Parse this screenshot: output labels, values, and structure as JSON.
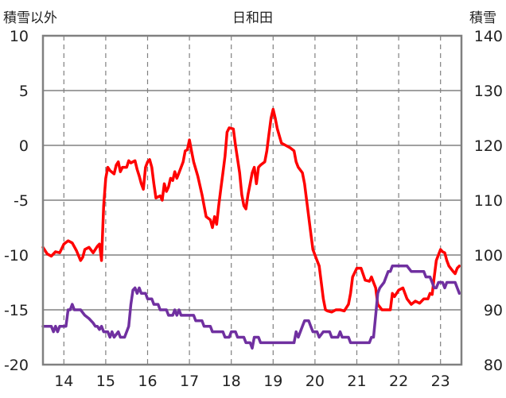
{
  "chart_data": {
    "type": "line",
    "title": "日和田",
    "ylabel_left": "積雪以外",
    "ylabel_right": "積雪",
    "x_tick_labels": [
      "14",
      "15",
      "16",
      "17",
      "18",
      "19",
      "20",
      "21",
      "22",
      "23"
    ],
    "xlim": [
      13.5,
      23.5
    ],
    "ylim_left": [
      -20,
      10
    ],
    "ylim_right": [
      80,
      140
    ],
    "y_ticks_left": [
      10,
      5,
      0,
      -5,
      -10,
      -15,
      -20
    ],
    "y_ticks_right": [
      140,
      130,
      120,
      110,
      100,
      90,
      80
    ],
    "grid": true,
    "series": [
      {
        "axis": "left",
        "color": "#ff0000",
        "points": [
          [
            13.5,
            -9.3
          ],
          [
            13.6,
            -9.9
          ],
          [
            13.7,
            -10.1
          ],
          [
            13.8,
            -9.7
          ],
          [
            13.9,
            -9.8
          ],
          [
            14.0,
            -9.0
          ],
          [
            14.1,
            -8.7
          ],
          [
            14.2,
            -8.9
          ],
          [
            14.3,
            -9.6
          ],
          [
            14.4,
            -10.5
          ],
          [
            14.45,
            -10.2
          ],
          [
            14.5,
            -9.5
          ],
          [
            14.6,
            -9.3
          ],
          [
            14.7,
            -9.8
          ],
          [
            14.8,
            -9.2
          ],
          [
            14.85,
            -9.0
          ],
          [
            14.9,
            -10.5
          ],
          [
            14.95,
            -5.5
          ],
          [
            15.0,
            -3.0
          ],
          [
            15.05,
            -2.0
          ],
          [
            15.1,
            -2.3
          ],
          [
            15.2,
            -2.6
          ],
          [
            15.25,
            -1.8
          ],
          [
            15.3,
            -1.5
          ],
          [
            15.35,
            -2.4
          ],
          [
            15.4,
            -2.0
          ],
          [
            15.5,
            -2.0
          ],
          [
            15.55,
            -1.4
          ],
          [
            15.6,
            -1.6
          ],
          [
            15.7,
            -1.4
          ],
          [
            15.75,
            -2.2
          ],
          [
            15.8,
            -2.8
          ],
          [
            15.85,
            -3.5
          ],
          [
            15.9,
            -4.0
          ],
          [
            15.95,
            -2.0
          ],
          [
            16.0,
            -1.5
          ],
          [
            16.05,
            -1.3
          ],
          [
            16.1,
            -2.0
          ],
          [
            16.15,
            -3.5
          ],
          [
            16.2,
            -4.8
          ],
          [
            16.3,
            -4.6
          ],
          [
            16.35,
            -5.0
          ],
          [
            16.4,
            -3.5
          ],
          [
            16.45,
            -4.2
          ],
          [
            16.5,
            -3.8
          ],
          [
            16.55,
            -3.0
          ],
          [
            16.6,
            -3.2
          ],
          [
            16.65,
            -2.4
          ],
          [
            16.7,
            -3.0
          ],
          [
            16.75,
            -2.5
          ],
          [
            16.8,
            -2.0
          ],
          [
            16.85,
            -1.5
          ],
          [
            16.9,
            -0.5
          ],
          [
            16.95,
            -0.4
          ],
          [
            17.0,
            0.5
          ],
          [
            17.05,
            -0.5
          ],
          [
            17.1,
            -1.5
          ],
          [
            17.2,
            -2.8
          ],
          [
            17.3,
            -4.5
          ],
          [
            17.35,
            -5.5
          ],
          [
            17.4,
            -6.5
          ],
          [
            17.5,
            -6.8
          ],
          [
            17.55,
            -7.5
          ],
          [
            17.6,
            -6.5
          ],
          [
            17.65,
            -7.2
          ],
          [
            17.7,
            -5.5
          ],
          [
            17.75,
            -4.0
          ],
          [
            17.8,
            -2.5
          ],
          [
            17.85,
            -1.0
          ],
          [
            17.9,
            1.2
          ],
          [
            17.95,
            1.6
          ],
          [
            18.05,
            1.5
          ],
          [
            18.1,
            0.0
          ],
          [
            18.2,
            -2.5
          ],
          [
            18.25,
            -4.5
          ],
          [
            18.3,
            -5.5
          ],
          [
            18.35,
            -5.8
          ],
          [
            18.4,
            -4.5
          ],
          [
            18.45,
            -3.5
          ],
          [
            18.5,
            -2.5
          ],
          [
            18.55,
            -2.0
          ],
          [
            18.6,
            -3.5
          ],
          [
            18.65,
            -2.0
          ],
          [
            18.7,
            -1.8
          ],
          [
            18.8,
            -1.5
          ],
          [
            18.85,
            -0.5
          ],
          [
            18.9,
            1.0
          ],
          [
            18.95,
            2.5
          ],
          [
            19.0,
            3.3
          ],
          [
            19.05,
            2.5
          ],
          [
            19.1,
            1.5
          ],
          [
            19.2,
            0.2
          ],
          [
            19.3,
            0.0
          ],
          [
            19.4,
            -0.2
          ],
          [
            19.5,
            -0.5
          ],
          [
            19.55,
            -1.5
          ],
          [
            19.6,
            -2.0
          ],
          [
            19.7,
            -2.5
          ],
          [
            19.75,
            -3.5
          ],
          [
            19.8,
            -5.0
          ],
          [
            19.85,
            -6.5
          ],
          [
            19.9,
            -8.0
          ],
          [
            19.95,
            -9.5
          ],
          [
            20.0,
            -10.0
          ],
          [
            20.05,
            -10.5
          ],
          [
            20.1,
            -11.0
          ],
          [
            20.15,
            -12.5
          ],
          [
            20.2,
            -14.0
          ],
          [
            20.25,
            -15.0
          ],
          [
            20.3,
            -15.1
          ],
          [
            20.4,
            -15.2
          ],
          [
            20.5,
            -15.0
          ],
          [
            20.6,
            -15.0
          ],
          [
            20.7,
            -15.1
          ],
          [
            20.8,
            -14.5
          ],
          [
            20.85,
            -13.5
          ],
          [
            20.9,
            -12.0
          ],
          [
            21.0,
            -11.2
          ],
          [
            21.1,
            -11.2
          ],
          [
            21.2,
            -12.3
          ],
          [
            21.3,
            -12.4
          ],
          [
            21.35,
            -12.0
          ],
          [
            21.4,
            -12.5
          ],
          [
            21.45,
            -13.0
          ],
          [
            21.5,
            -14.5
          ],
          [
            21.6,
            -15.0
          ],
          [
            21.8,
            -15.0
          ],
          [
            21.85,
            -13.5
          ],
          [
            21.9,
            -13.8
          ],
          [
            22.0,
            -13.2
          ],
          [
            22.1,
            -13.0
          ],
          [
            22.2,
            -14.0
          ],
          [
            22.3,
            -14.5
          ],
          [
            22.4,
            -14.2
          ],
          [
            22.5,
            -14.4
          ],
          [
            22.6,
            -14.0
          ],
          [
            22.7,
            -14.0
          ],
          [
            22.75,
            -13.5
          ],
          [
            22.8,
            -13.6
          ],
          [
            22.85,
            -12.0
          ],
          [
            22.9,
            -10.5
          ],
          [
            23.0,
            -9.5
          ],
          [
            23.05,
            -9.7
          ],
          [
            23.1,
            -9.8
          ],
          [
            23.15,
            -10.5
          ],
          [
            23.2,
            -11.0
          ],
          [
            23.3,
            -11.5
          ],
          [
            23.35,
            -11.7
          ],
          [
            23.4,
            -11.2
          ],
          [
            23.45,
            -11.0
          ]
        ]
      },
      {
        "axis": "left",
        "color": "#7030a0",
        "points": [
          [
            13.5,
            -16.5
          ],
          [
            13.7,
            -16.5
          ],
          [
            13.75,
            -17.0
          ],
          [
            13.8,
            -16.5
          ],
          [
            13.85,
            -17.0
          ],
          [
            13.9,
            -16.5
          ],
          [
            14.05,
            -16.5
          ],
          [
            14.1,
            -15.0
          ],
          [
            14.15,
            -15.0
          ],
          [
            14.2,
            -14.5
          ],
          [
            14.25,
            -15.0
          ],
          [
            14.4,
            -15.0
          ],
          [
            14.5,
            -15.5
          ],
          [
            14.6,
            -15.8
          ],
          [
            14.65,
            -16.0
          ],
          [
            14.7,
            -16.2
          ],
          [
            14.75,
            -16.5
          ],
          [
            14.8,
            -16.5
          ],
          [
            14.85,
            -16.8
          ],
          [
            14.9,
            -16.5
          ],
          [
            14.95,
            -17.0
          ],
          [
            15.05,
            -17.0
          ],
          [
            15.1,
            -17.5
          ],
          [
            15.15,
            -17.0
          ],
          [
            15.2,
            -17.5
          ],
          [
            15.3,
            -17.0
          ],
          [
            15.35,
            -17.5
          ],
          [
            15.45,
            -17.5
          ],
          [
            15.5,
            -17.0
          ],
          [
            15.55,
            -16.5
          ],
          [
            15.6,
            -14.5
          ],
          [
            15.65,
            -13.2
          ],
          [
            15.7,
            -13.0
          ],
          [
            15.75,
            -13.5
          ],
          [
            15.8,
            -13.0
          ],
          [
            15.85,
            -13.5
          ],
          [
            15.95,
            -13.5
          ],
          [
            16.0,
            -14.0
          ],
          [
            16.1,
            -14.0
          ],
          [
            16.15,
            -14.5
          ],
          [
            16.25,
            -14.5
          ],
          [
            16.3,
            -15.0
          ],
          [
            16.45,
            -15.0
          ],
          [
            16.5,
            -15.5
          ],
          [
            16.6,
            -15.5
          ],
          [
            16.65,
            -15.0
          ],
          [
            16.7,
            -15.5
          ],
          [
            16.75,
            -15.0
          ],
          [
            16.8,
            -15.5
          ],
          [
            17.1,
            -15.5
          ],
          [
            17.15,
            -16.0
          ],
          [
            17.3,
            -16.0
          ],
          [
            17.35,
            -16.5
          ],
          [
            17.5,
            -16.5
          ],
          [
            17.55,
            -17.0
          ],
          [
            17.8,
            -17.0
          ],
          [
            17.85,
            -17.5
          ],
          [
            17.95,
            -17.5
          ],
          [
            18.0,
            -17.0
          ],
          [
            18.1,
            -17.0
          ],
          [
            18.15,
            -17.5
          ],
          [
            18.3,
            -17.5
          ],
          [
            18.35,
            -18.0
          ],
          [
            18.45,
            -18.0
          ],
          [
            18.5,
            -18.5
          ],
          [
            18.55,
            -17.5
          ],
          [
            18.65,
            -17.5
          ],
          [
            18.7,
            -18.0
          ],
          [
            19.5,
            -18.0
          ],
          [
            19.55,
            -17.0
          ],
          [
            19.6,
            -17.5
          ],
          [
            19.65,
            -17.0
          ],
          [
            19.7,
            -16.5
          ],
          [
            19.75,
            -16.0
          ],
          [
            19.85,
            -16.0
          ],
          [
            19.9,
            -16.5
          ],
          [
            19.95,
            -17.0
          ],
          [
            20.05,
            -17.0
          ],
          [
            20.1,
            -17.5
          ],
          [
            20.2,
            -17.0
          ],
          [
            20.35,
            -17.0
          ],
          [
            20.4,
            -17.5
          ],
          [
            20.55,
            -17.5
          ],
          [
            20.6,
            -17.0
          ],
          [
            20.65,
            -17.5
          ],
          [
            20.8,
            -17.5
          ],
          [
            20.85,
            -18.0
          ],
          [
            21.3,
            -18.0
          ],
          [
            21.35,
            -17.5
          ],
          [
            21.4,
            -17.5
          ],
          [
            21.45,
            -15.5
          ],
          [
            21.5,
            -13.5
          ],
          [
            21.55,
            -13.0
          ],
          [
            21.65,
            -12.5
          ],
          [
            21.7,
            -12.0
          ],
          [
            21.75,
            -11.5
          ],
          [
            21.8,
            -11.5
          ],
          [
            21.85,
            -11.0
          ],
          [
            22.2,
            -11.0
          ],
          [
            22.3,
            -11.5
          ],
          [
            22.6,
            -11.5
          ],
          [
            22.65,
            -12.0
          ],
          [
            22.75,
            -12.0
          ],
          [
            22.8,
            -12.5
          ],
          [
            22.85,
            -13.0
          ],
          [
            22.9,
            -13.0
          ],
          [
            22.95,
            -12.5
          ],
          [
            23.05,
            -12.5
          ],
          [
            23.1,
            -13.0
          ],
          [
            23.15,
            -12.5
          ],
          [
            23.35,
            -12.5
          ],
          [
            23.4,
            -13.0
          ],
          [
            23.45,
            -13.5
          ]
        ]
      }
    ]
  }
}
